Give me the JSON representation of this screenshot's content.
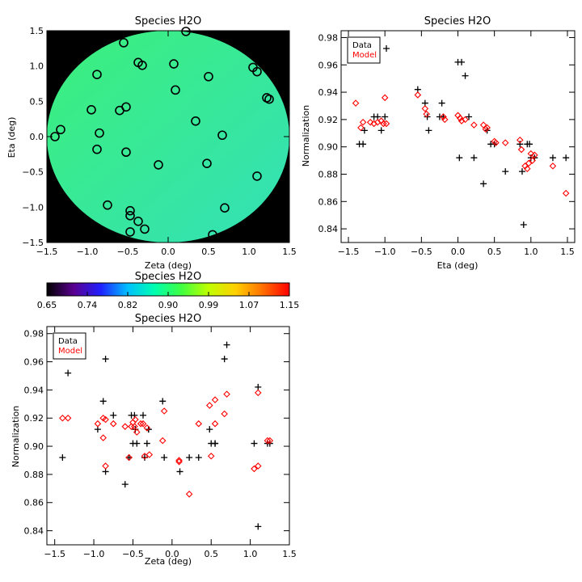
{
  "chart_data": [
    {
      "type": "heatmap",
      "title": "Species H2O",
      "xlabel": "Zeta (deg)",
      "ylabel": "Eta (deg)",
      "xlim": [
        -1.5,
        1.5
      ],
      "ylim": [
        -1.5,
        1.5
      ],
      "x_ticks": [
        "−1.5",
        "−1.0",
        "−0.5",
        "0.0",
        "0.5",
        "1.0",
        "1.5"
      ],
      "y_ticks": [
        "−1.5",
        "−1.0",
        "−0.5",
        "0.0",
        "0.5",
        "1.0",
        "1.5"
      ],
      "x_tick_values": [
        -1.5,
        -1.0,
        -0.5,
        0.0,
        0.5,
        1.0,
        1.5
      ],
      "y_tick_values": [
        -1.5,
        -1.0,
        -0.5,
        0.0,
        0.5,
        1.0,
        1.5
      ],
      "field_radius_deg": 1.5,
      "background_color": "#000000",
      "field_color_left": "#3cf07a",
      "field_color_right": "#33e0b8",
      "points": [
        {
          "x": -1.4,
          "y": 0.0
        },
        {
          "x": -1.33,
          "y": 0.1
        },
        {
          "x": -0.95,
          "y": 0.38
        },
        {
          "x": -0.88,
          "y": 0.88
        },
        {
          "x": -0.88,
          "y": -0.18
        },
        {
          "x": -0.85,
          "y": 0.05
        },
        {
          "x": -0.75,
          "y": -0.97
        },
        {
          "x": -0.6,
          "y": 0.37
        },
        {
          "x": -0.55,
          "y": 1.33
        },
        {
          "x": -0.52,
          "y": 0.42
        },
        {
          "x": -0.52,
          "y": -0.22
        },
        {
          "x": -0.47,
          "y": -1.05
        },
        {
          "x": -0.47,
          "y": -1.12
        },
        {
          "x": -0.47,
          "y": -1.35
        },
        {
          "x": -0.37,
          "y": 1.05
        },
        {
          "x": -0.32,
          "y": 1.01
        },
        {
          "x": -0.37,
          "y": -1.2
        },
        {
          "x": -0.29,
          "y": -1.31
        },
        {
          "x": -0.12,
          "y": -0.4
        },
        {
          "x": 0.07,
          "y": 1.03
        },
        {
          "x": 0.09,
          "y": 0.66
        },
        {
          "x": 0.22,
          "y": 1.49
        },
        {
          "x": 0.34,
          "y": 0.22
        },
        {
          "x": 0.48,
          "y": -0.38
        },
        {
          "x": 0.5,
          "y": 0.85
        },
        {
          "x": 0.55,
          "y": -1.39
        },
        {
          "x": 0.67,
          "y": 0.02
        },
        {
          "x": 0.7,
          "y": -1.01
        },
        {
          "x": 1.05,
          "y": 0.98
        },
        {
          "x": 1.1,
          "y": 0.92
        },
        {
          "x": 1.1,
          "y": -0.56
        },
        {
          "x": 1.22,
          "y": 0.55
        },
        {
          "x": 1.25,
          "y": 0.53
        }
      ]
    },
    {
      "type": "colorbar",
      "title": "Species H2O",
      "ticks": [
        "0.65",
        "0.74",
        "0.82",
        "0.90",
        "0.99",
        "1.07",
        "1.15"
      ],
      "range": [
        0.65,
        1.15
      ],
      "colors": [
        "#000000",
        "#5a0090",
        "#2020ff",
        "#00c0ff",
        "#00ffb0",
        "#40ff40",
        "#c0ff00",
        "#ffd000",
        "#ff7000",
        "#ff0000"
      ]
    },
    {
      "type": "scatter",
      "title": "Species H2O",
      "xlabel": "Eta (deg)",
      "ylabel": "Normalization",
      "xlim": [
        -1.6,
        1.6
      ],
      "ylim": [
        0.83,
        0.985
      ],
      "x_ticks": [
        "−1.5",
        "−1.0",
        "−0.5",
        "0.0",
        "0.5",
        "1.0",
        "1.5"
      ],
      "y_ticks": [
        "0.84",
        "0.86",
        "0.88",
        "0.90",
        "0.92",
        "0.94",
        "0.96",
        "0.98"
      ],
      "x_tick_values": [
        -1.5,
        -1.0,
        -0.5,
        0.0,
        0.5,
        1.0,
        1.5
      ],
      "y_tick_values": [
        0.84,
        0.86,
        0.88,
        0.9,
        0.92,
        0.94,
        0.96,
        0.98
      ],
      "legend": {
        "position": "top-left",
        "entries": [
          {
            "label": "Data",
            "color": "#000000"
          },
          {
            "label": "Model",
            "color": "#ff0000"
          }
        ]
      },
      "series": [
        {
          "name": "Data",
          "marker": "plus",
          "color": "#000000",
          "x": [
            -1.35,
            -1.3,
            -1.28,
            -1.15,
            -1.1,
            -1.05,
            -1.0,
            -0.98,
            -0.55,
            -0.45,
            -0.42,
            -0.4,
            -0.25,
            -0.22,
            -0.2,
            0.0,
            0.02,
            0.05,
            0.1,
            0.15,
            0.22,
            0.35,
            0.4,
            0.45,
            0.5,
            0.65,
            0.85,
            0.88,
            0.9,
            0.95,
            0.98,
            1.0,
            1.05,
            1.3,
            1.48
          ],
          "y": [
            0.902,
            0.902,
            0.912,
            0.922,
            0.922,
            0.912,
            0.922,
            0.972,
            0.942,
            0.932,
            0.922,
            0.912,
            0.922,
            0.932,
            0.922,
            0.962,
            0.892,
            0.962,
            0.952,
            0.922,
            0.892,
            0.873,
            0.912,
            0.902,
            0.902,
            0.882,
            0.902,
            0.882,
            0.843,
            0.902,
            0.902,
            0.892,
            0.892,
            0.892,
            0.892
          ]
        },
        {
          "name": "Model",
          "marker": "diamond",
          "color": "#ff0000",
          "x": [
            -1.4,
            -1.33,
            -1.3,
            -1.2,
            -1.15,
            -1.1,
            -1.05,
            -1.02,
            -1.0,
            -0.98,
            -0.55,
            -0.45,
            -0.43,
            -0.2,
            -0.18,
            0.0,
            0.03,
            0.05,
            0.1,
            0.22,
            0.35,
            0.38,
            0.4,
            0.5,
            0.52,
            0.65,
            0.85,
            0.87,
            0.92,
            0.95,
            0.97,
            1.0,
            1.02,
            1.05,
            1.3,
            1.48
          ],
          "y": [
            0.932,
            0.914,
            0.918,
            0.918,
            0.917,
            0.918,
            0.919,
            0.917,
            0.936,
            0.917,
            0.938,
            0.928,
            0.924,
            0.922,
            0.92,
            0.923,
            0.921,
            0.919,
            0.92,
            0.916,
            0.916,
            0.913,
            0.914,
            0.904,
            0.903,
            0.903,
            0.905,
            0.898,
            0.886,
            0.884,
            0.888,
            0.895,
            0.89,
            0.894,
            0.886,
            0.866
          ]
        }
      ]
    },
    {
      "type": "scatter",
      "title": "Species H2O",
      "xlabel": "Zeta (deg)",
      "ylabel": "Normalization",
      "xlim": [
        -1.6,
        1.5
      ],
      "ylim": [
        0.83,
        0.985
      ],
      "x_ticks": [
        "−1.5",
        "−1.0",
        "−0.5",
        "0.0",
        "0.5",
        "1.0",
        "1.5"
      ],
      "y_ticks": [
        "0.84",
        "0.86",
        "0.88",
        "0.90",
        "0.92",
        "0.94",
        "0.96",
        "0.98"
      ],
      "x_tick_values": [
        -1.5,
        -1.0,
        -0.5,
        0.0,
        0.5,
        1.0,
        1.5
      ],
      "y_tick_values": [
        0.84,
        0.86,
        0.88,
        0.9,
        0.92,
        0.94,
        0.96,
        0.98
      ],
      "legend": {
        "position": "top-left",
        "entries": [
          {
            "label": "Data",
            "color": "#000000"
          },
          {
            "label": "Model",
            "color": "#ff0000"
          }
        ]
      },
      "series": [
        {
          "name": "Data",
          "marker": "plus",
          "color": "#000000",
          "x": [
            -1.4,
            -1.33,
            -0.95,
            -0.88,
            -0.85,
            -0.85,
            -0.75,
            -0.6,
            -0.55,
            -0.52,
            -0.5,
            -0.48,
            -0.47,
            -0.45,
            -0.37,
            -0.35,
            -0.32,
            -0.3,
            -0.3,
            -0.12,
            -0.1,
            0.1,
            0.22,
            0.34,
            0.48,
            0.5,
            0.55,
            0.55,
            0.67,
            0.7,
            1.05,
            1.1,
            1.1,
            1.22,
            1.25
          ],
          "y": [
            0.892,
            0.952,
            0.912,
            0.932,
            0.962,
            0.882,
            0.922,
            0.873,
            0.892,
            0.922,
            0.902,
            0.922,
            0.912,
            0.902,
            0.922,
            0.892,
            0.902,
            0.912,
            0.912,
            0.932,
            0.892,
            0.882,
            0.892,
            0.892,
            0.912,
            0.902,
            0.902,
            0.902,
            0.962,
            0.972,
            0.902,
            0.942,
            0.843,
            0.902,
            0.902
          ]
        },
        {
          "name": "Model",
          "marker": "diamond",
          "color": "#ff0000",
          "x": [
            -1.4,
            -1.33,
            -0.95,
            -0.88,
            -0.88,
            -0.85,
            -0.85,
            -0.75,
            -0.6,
            -0.55,
            -0.52,
            -0.5,
            -0.48,
            -0.47,
            -0.45,
            -0.4,
            -0.37,
            -0.35,
            -0.32,
            -0.29,
            -0.12,
            -0.1,
            0.09,
            0.09,
            0.22,
            0.34,
            0.48,
            0.5,
            0.55,
            0.55,
            0.67,
            0.7,
            1.05,
            1.1,
            1.1,
            1.22,
            1.25
          ],
          "y": [
            0.92,
            0.92,
            0.916,
            0.92,
            0.906,
            0.919,
            0.886,
            0.916,
            0.914,
            0.892,
            0.914,
            0.917,
            0.914,
            0.919,
            0.91,
            0.916,
            0.916,
            0.893,
            0.913,
            0.894,
            0.904,
            0.925,
            0.889,
            0.89,
            0.866,
            0.916,
            0.929,
            0.893,
            0.933,
            0.916,
            0.923,
            0.937,
            0.884,
            0.938,
            0.886,
            0.904,
            0.904
          ]
        }
      ]
    }
  ]
}
